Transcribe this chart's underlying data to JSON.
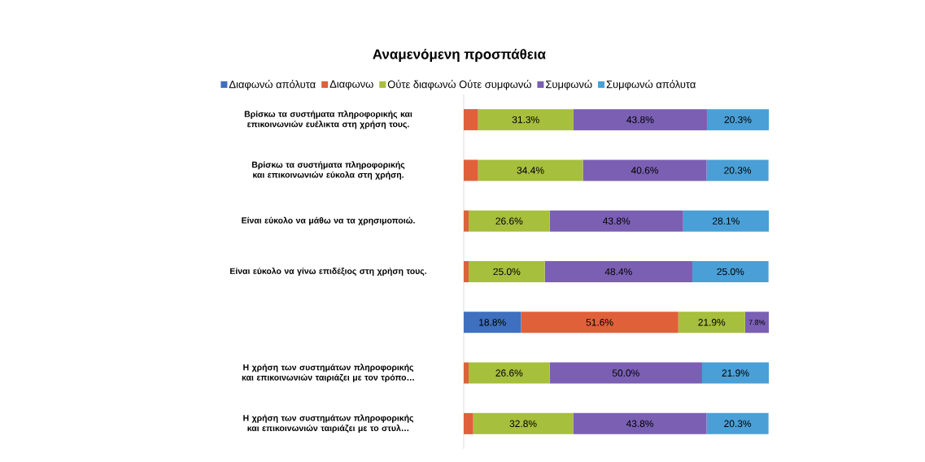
{
  "chart_data": {
    "type": "bar",
    "orientation": "horizontal",
    "stacked": true,
    "title": "Αναμενόμενη προσπάθεια",
    "legend": "top",
    "categories": [
      "Βρίσκω τα συστήματα πληροφορικής και επικοινωνιών ευέλικτα στη χρήση τους.",
      "Βρίσκω τα συστήματα πληροφορικής και επικοινωνιών εύκολα στη χρήση.",
      "Είναι εύκολο να μάθω να τα χρησιμοποιώ.",
      "Είναι εύκολο να γίνω επιδέξιος στη χρήση τους.",
      null,
      "Η χρήση των συστημάτων πληροφορικής και επικοινωνιών ταιριάζει με τον τρόπο…",
      "Η χρήση των συστημάτων πληροφορικής και επικοινωνιών ταιριάζει με το στυλ…"
    ],
    "series": [
      {
        "name": "Διαφωνώ απόλυτα",
        "color": "#3f6fbf",
        "values": [
          0.0,
          0.0,
          0.0,
          0.0,
          18.8,
          0.0,
          0.0
        ],
        "value_labels": [
          null,
          null,
          null,
          null,
          "18.8%",
          null,
          null
        ]
      },
      {
        "name": "Διαφωνω",
        "color": "#e0603a",
        "values": [
          4.7,
          4.7,
          1.6,
          1.6,
          51.6,
          1.6,
          3.1
        ],
        "value_labels": [
          null,
          null,
          null,
          null,
          "51.6%",
          null,
          null
        ]
      },
      {
        "name": "Ούτε διαφωνώ Ούτε συμφωνώ",
        "color": "#a6bf3c",
        "values": [
          31.3,
          34.4,
          26.6,
          25.0,
          21.9,
          26.6,
          32.8
        ],
        "value_labels": [
          "31.3%",
          "34.4%",
          "26.6%",
          "25.0%",
          "21.9%",
          "26.6%",
          "32.8%"
        ]
      },
      {
        "name": "Συμφωνώ",
        "color": "#7a5fb3",
        "values": [
          43.8,
          40.6,
          43.8,
          48.4,
          7.8,
          50.0,
          43.8
        ],
        "value_labels": [
          "43.8%",
          "40.6%",
          "43.8%",
          "48.4%",
          "7.8%",
          "50.0%",
          "43.8%"
        ]
      },
      {
        "name": "Συμφωνώ απόλυτα",
        "color": "#4a9fd6",
        "values": [
          20.3,
          20.3,
          28.1,
          25.0,
          0.0,
          21.9,
          20.3
        ],
        "value_labels": [
          "20.3%",
          "20.3%",
          "28.1%",
          "25.0%",
          null,
          "21.9%",
          "20.3%"
        ]
      }
    ]
  }
}
